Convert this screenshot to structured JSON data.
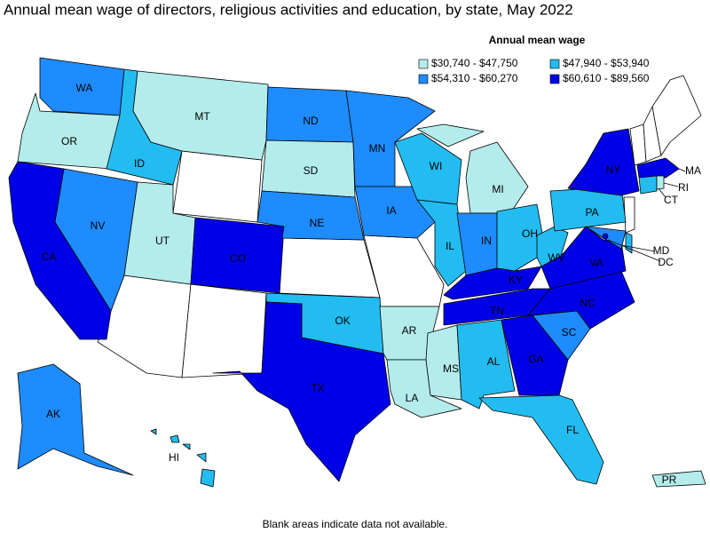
{
  "title": "Annual mean wage of directors, religious activities and education, by state, May 2022",
  "legend": {
    "title": "Annual mean wage",
    "items": [
      {
        "label": "$30,740 - $47,750",
        "color": "#b4ecec"
      },
      {
        "label": "$47,940 - $53,940",
        "color": "#22bcf0"
      },
      {
        "label": "$54,310 - $60,270",
        "color": "#1e8cff"
      },
      {
        "label": "$60,610 - $89,560",
        "color": "#0000e6"
      }
    ]
  },
  "states": [
    {
      "label": "WA",
      "class": 2
    },
    {
      "label": "OR",
      "class": 0
    },
    {
      "label": "CA",
      "class": 3
    },
    {
      "label": "NV",
      "class": 2
    },
    {
      "label": "ID",
      "class": 1
    },
    {
      "label": "MT",
      "class": 0
    },
    {
      "label": "UT",
      "class": 0
    },
    {
      "label": "CO",
      "class": 3
    },
    {
      "label": "ND",
      "class": 2
    },
    {
      "label": "SD",
      "class": 0
    },
    {
      "label": "NE",
      "class": 2
    },
    {
      "label": "OK",
      "class": 1
    },
    {
      "label": "TX",
      "class": 3
    },
    {
      "label": "MN",
      "class": 2
    },
    {
      "label": "IA",
      "class": 2
    },
    {
      "label": "AR",
      "class": 0
    },
    {
      "label": "LA",
      "class": 0
    },
    {
      "label": "WI",
      "class": 1
    },
    {
      "label": "IL",
      "class": 1
    },
    {
      "label": "MI",
      "class": 0
    },
    {
      "label": "IN",
      "class": 2
    },
    {
      "label": "OH",
      "class": 1
    },
    {
      "label": "KY",
      "class": 3
    },
    {
      "label": "TN",
      "class": 3
    },
    {
      "label": "MS",
      "class": 0
    },
    {
      "label": "AL",
      "class": 1
    },
    {
      "label": "GA",
      "class": 3
    },
    {
      "label": "FL",
      "class": 1
    },
    {
      "label": "SC",
      "class": 2
    },
    {
      "label": "NC",
      "class": 3
    },
    {
      "label": "VA",
      "class": 3
    },
    {
      "label": "WV",
      "class": 1
    },
    {
      "label": "PA",
      "class": 1
    },
    {
      "label": "NY",
      "class": 3
    },
    {
      "label": "MA",
      "class": 3
    },
    {
      "label": "CT",
      "class": 1
    },
    {
      "label": "RI",
      "class": 0
    },
    {
      "label": "MD",
      "class": 2
    },
    {
      "label": "DC",
      "class": 3
    },
    {
      "label": "AK",
      "class": 2
    },
    {
      "label": "HI",
      "class": 1
    },
    {
      "label": "PR",
      "class": 0
    }
  ],
  "footnote": "Blank areas indicate data not available."
}
